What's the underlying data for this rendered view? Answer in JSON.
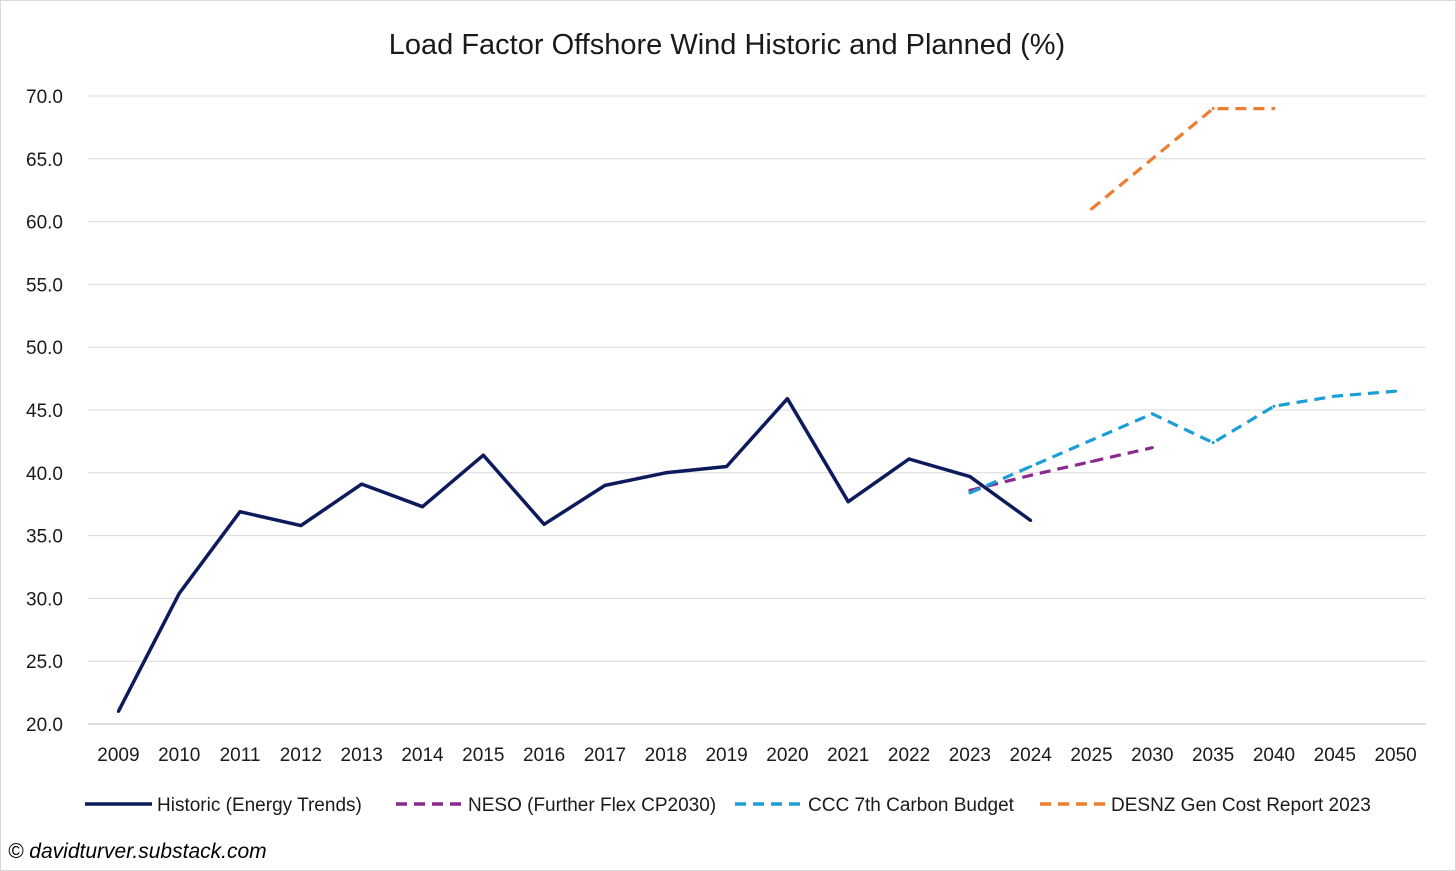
{
  "chart_data": {
    "type": "line",
    "title": "Load Factor Offshore Wind Historic and Planned (%)",
    "xlabel": "",
    "ylabel": "",
    "ylim": [
      20,
      70
    ],
    "ytick_values": [
      20,
      25,
      30,
      35,
      40,
      45,
      50,
      55,
      60,
      65,
      70
    ],
    "ytick_labels": [
      "20.0",
      "25.0",
      "30.0",
      "35.0",
      "40.0",
      "45.0",
      "50.0",
      "55.0",
      "60.0",
      "65.0",
      "70.0"
    ],
    "categories": [
      "2009",
      "2010",
      "2011",
      "2012",
      "2013",
      "2014",
      "2015",
      "2016",
      "2017",
      "2018",
      "2019",
      "2020",
      "2021",
      "2022",
      "2023",
      "2024",
      "2025",
      "2030",
      "2035",
      "2040",
      "2045",
      "2050"
    ],
    "grid": true,
    "legend_position": "bottom",
    "series": [
      {
        "name": "Historic (Energy Trends)",
        "color": "#0d1b5c",
        "dash": "solid",
        "values": [
          21.0,
          30.4,
          36.9,
          35.8,
          39.1,
          37.3,
          41.4,
          35.9,
          39.0,
          40.0,
          40.5,
          45.9,
          37.7,
          41.1,
          39.7,
          36.2,
          null,
          null,
          null,
          null,
          null,
          null
        ]
      },
      {
        "name": "NESO (Further Flex CP2030)",
        "color": "#8b2a8e",
        "dash": "dashed",
        "values": [
          null,
          null,
          null,
          null,
          null,
          null,
          null,
          null,
          null,
          null,
          null,
          null,
          null,
          null,
          38.6,
          39.8,
          40.9,
          42.0,
          null,
          null,
          null,
          null
        ]
      },
      {
        "name": "CCC 7th Carbon Budget",
        "color": "#1b9ed6",
        "dash": "dashed",
        "values": [
          null,
          null,
          null,
          null,
          null,
          null,
          null,
          null,
          null,
          null,
          null,
          null,
          null,
          null,
          38.4,
          40.5,
          42.6,
          44.7,
          42.4,
          45.3,
          46.1,
          46.5
        ]
      },
      {
        "name": "DESNZ Gen Cost Report 2023",
        "color": "#ed7d31",
        "dash": "dashed",
        "values": [
          null,
          null,
          null,
          null,
          null,
          null,
          null,
          null,
          null,
          null,
          null,
          null,
          null,
          null,
          null,
          null,
          61.0,
          65.0,
          69.0,
          69.0,
          null,
          null
        ]
      }
    ]
  },
  "credit": "© davidturver.substack.com"
}
